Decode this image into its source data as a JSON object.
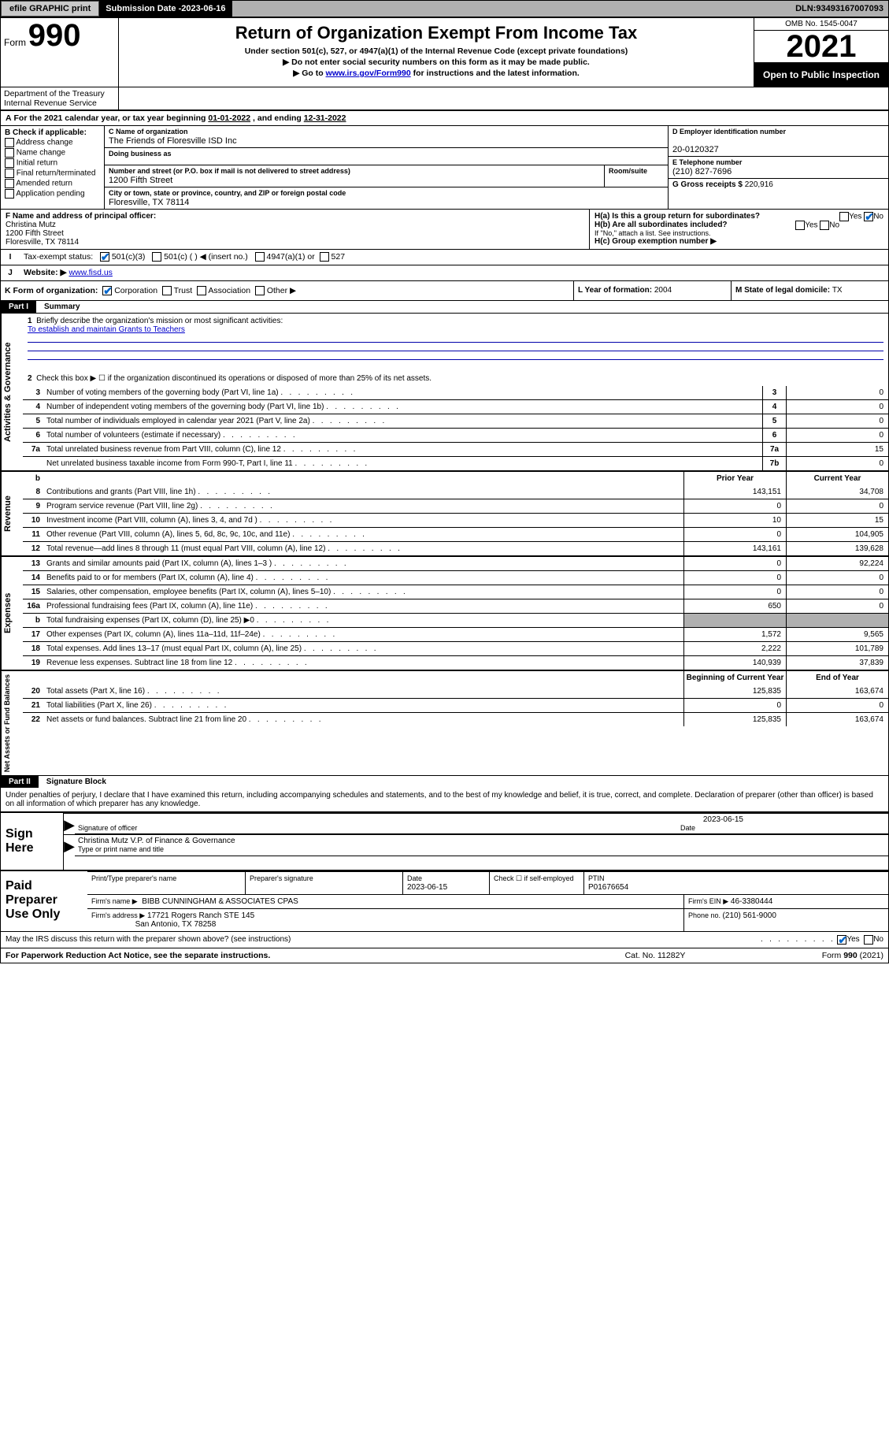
{
  "topbar": {
    "efile": "efile GRAPHIC print",
    "subdate_label": "Submission Date - ",
    "subdate": "2023-06-16",
    "dln_label": "DLN: ",
    "dln": "93493167007093"
  },
  "header": {
    "form_word": "Form",
    "form_num": "990",
    "title": "Return of Organization Exempt From Income Tax",
    "subtitle": "Under section 501(c), 527, or 4947(a)(1) of the Internal Revenue Code (except private foundations)",
    "note1": "▶ Do not enter social security numbers on this form as it may be made public.",
    "note2_pre": "▶ Go to ",
    "note2_link": "www.irs.gov/Form990",
    "note2_post": " for instructions and the latest information.",
    "omb": "OMB No. 1545-0047",
    "taxyear": "2021",
    "opentopublic": "Open to Public Inspection",
    "dept": "Department of the Treasury",
    "irs": "Internal Revenue Service"
  },
  "lineA": {
    "text_pre": "For the 2021 calendar year, or tax year beginning ",
    "begin": "01-01-2022",
    "mid": "    , and ending ",
    "end": "12-31-2022"
  },
  "colB": {
    "label": "B Check if applicable:",
    "items": [
      "Address change",
      "Name change",
      "Initial return",
      "Final return/terminated",
      "Amended return",
      "Application pending"
    ]
  },
  "colC": {
    "name_label": "C Name of organization",
    "name": "The Friends of Floresville ISD Inc",
    "dba_label": "Doing business as",
    "addr_label": "Number and street (or P.O. box if mail is not delivered to street address)",
    "room_label": "Room/suite",
    "addr": "1200 Fifth Street",
    "city_label": "City or town, state or province, country, and ZIP or foreign postal code",
    "city": "Floresville, TX  78114"
  },
  "colD": {
    "d_label": "D Employer identification number",
    "d_val": "20-0120327",
    "e_label": "E Telephone number",
    "e_val": "(210) 827-7696",
    "g_label": "G Gross receipts $ ",
    "g_val": "220,916"
  },
  "rowF": {
    "label": "F Name and address of principal officer:",
    "name": "Christina Mutz",
    "addr1": "1200 Fifth Street",
    "addr2": "Floresville, TX  78114"
  },
  "rowH": {
    "ha": "H(a)  Is this a group return for subordinates?",
    "hb": "H(b)  Are all subordinates included?",
    "hb_note": "If \"No,\" attach a list. See instructions.",
    "hc": "H(c)  Group exemption number ▶",
    "yes": "Yes",
    "no": "No"
  },
  "rowI": {
    "label": "Tax-exempt status:",
    "o1": "501(c)(3)",
    "o2": "501(c) (  ) ◀ (insert no.)",
    "o3": "4947(a)(1) or",
    "o4": "527"
  },
  "rowJ": {
    "label": "Website: ▶",
    "val": "www.fisd.us"
  },
  "rowK": {
    "label": "K Form of organization:",
    "o1": "Corporation",
    "o2": "Trust",
    "o3": "Association",
    "o4": "Other ▶"
  },
  "rowL": {
    "label": "L Year of formation: ",
    "val": "2004"
  },
  "rowM": {
    "label": "M State of legal domicile: ",
    "val": "TX"
  },
  "part1": {
    "partnum": "Part I",
    "title": "Summary",
    "l1": "Briefly describe the organization's mission or most significant activities:",
    "mission": "To establish and maintain Grants to Teachers",
    "l2": "Check this box ▶ ☐  if the organization discontinued its operations or disposed of more than 25% of its net assets.",
    "vtabs": [
      "Activities & Governance",
      "Revenue",
      "Expenses",
      "Net Assets or Fund Balances"
    ],
    "govRows": [
      {
        "n": "3",
        "d": "Number of voting members of the governing body (Part VI, line 1a)",
        "c": "3",
        "v": "0"
      },
      {
        "n": "4",
        "d": "Number of independent voting members of the governing body (Part VI, line 1b)",
        "c": "4",
        "v": "0"
      },
      {
        "n": "5",
        "d": "Total number of individuals employed in calendar year 2021 (Part V, line 2a)",
        "c": "5",
        "v": "0"
      },
      {
        "n": "6",
        "d": "Total number of volunteers (estimate if necessary)",
        "c": "6",
        "v": "0"
      },
      {
        "n": "7a",
        "d": "Total unrelated business revenue from Part VIII, column (C), line 12",
        "c": "7a",
        "v": "15"
      },
      {
        "n": "",
        "d": "Net unrelated business taxable income from Form 990-T, Part I, line 11",
        "c": "7b",
        "v": "0"
      }
    ],
    "hdr_b": "b",
    "hdr_prior": "Prior Year",
    "hdr_curr": "Current Year",
    "revRows": [
      {
        "n": "8",
        "d": "Contributions and grants (Part VIII, line 1h)",
        "p": "143,151",
        "c": "34,708"
      },
      {
        "n": "9",
        "d": "Program service revenue (Part VIII, line 2g)",
        "p": "0",
        "c": "0"
      },
      {
        "n": "10",
        "d": "Investment income (Part VIII, column (A), lines 3, 4, and 7d )",
        "p": "10",
        "c": "15"
      },
      {
        "n": "11",
        "d": "Other revenue (Part VIII, column (A), lines 5, 6d, 8c, 9c, 10c, and 11e)",
        "p": "0",
        "c": "104,905"
      },
      {
        "n": "12",
        "d": "Total revenue—add lines 8 through 11 (must equal Part VIII, column (A), line 12)",
        "p": "143,161",
        "c": "139,628"
      }
    ],
    "expRows": [
      {
        "n": "13",
        "d": "Grants and similar amounts paid (Part IX, column (A), lines 1–3 )",
        "p": "0",
        "c": "92,224"
      },
      {
        "n": "14",
        "d": "Benefits paid to or for members (Part IX, column (A), line 4)",
        "p": "0",
        "c": "0"
      },
      {
        "n": "15",
        "d": "Salaries, other compensation, employee benefits (Part IX, column (A), lines 5–10)",
        "p": "0",
        "c": "0"
      },
      {
        "n": "16a",
        "d": "Professional fundraising fees (Part IX, column (A), line 11e)",
        "p": "650",
        "c": "0"
      },
      {
        "n": "b",
        "d": "Total fundraising expenses (Part IX, column (D), line 25) ▶0",
        "p": "grey",
        "c": "grey"
      },
      {
        "n": "17",
        "d": "Other expenses (Part IX, column (A), lines 11a–11d, 11f–24e)",
        "p": "1,572",
        "c": "9,565"
      },
      {
        "n": "18",
        "d": "Total expenses. Add lines 13–17 (must equal Part IX, column (A), line 25)",
        "p": "2,222",
        "c": "101,789"
      },
      {
        "n": "19",
        "d": "Revenue less expenses. Subtract line 18 from line 12",
        "p": "140,939",
        "c": "37,839"
      }
    ],
    "hdr_begin": "Beginning of Current Year",
    "hdr_end": "End of Year",
    "netRows": [
      {
        "n": "20",
        "d": "Total assets (Part X, line 16)",
        "p": "125,835",
        "c": "163,674"
      },
      {
        "n": "21",
        "d": "Total liabilities (Part X, line 26)",
        "p": "0",
        "c": "0"
      },
      {
        "n": "22",
        "d": "Net assets or fund balances. Subtract line 21 from line 20",
        "p": "125,835",
        "c": "163,674"
      }
    ]
  },
  "part2": {
    "partnum": "Part II",
    "title": "Signature Block",
    "decl": "Under penalties of perjury, I declare that I have examined this return, including accompanying schedules and statements, and to the best of my knowledge and belief, it is true, correct, and complete. Declaration of preparer (other than officer) is based on all information of which preparer has any knowledge.",
    "sign_here": "Sign Here",
    "sigoff_label": "Signature of officer",
    "date_label": "Date",
    "sig_date": "2023-06-15",
    "officer_name": "Christina Mutz V.P. of Finance & Governance",
    "officer_type_label": "Type or print name and title",
    "paid_label": "Paid Preparer Use Only",
    "pr_name_label": "Print/Type preparer's name",
    "pr_sig_label": "Preparer's signature",
    "pr_date_label": "Date",
    "pr_date": "2023-06-15",
    "pr_chk_label": "Check ☐ if self-employed",
    "pr_ptin_label": "PTIN",
    "pr_ptin": "P01676654",
    "firm_name_label": "Firm's name    ▶",
    "firm_name": "BIBB CUNNINGHAM & ASSOCIATES CPAS",
    "firm_ein_label": "Firm's EIN ▶",
    "firm_ein": "46-3380444",
    "firm_addr_label": "Firm's address ▶",
    "firm_addr1": "17721 Rogers Ranch STE 145",
    "firm_addr2": "San Antonio, TX  78258",
    "firm_phone_label": "Phone no. ",
    "firm_phone": "(210) 561-9000",
    "irs_discuss": "May the IRS discuss this return with the preparer shown above? (see instructions)"
  },
  "footer": {
    "f1": "For Paperwork Reduction Act Notice, see the separate instructions.",
    "f2": "Cat. No. 11282Y",
    "f3": "Form 990 (2021)"
  }
}
